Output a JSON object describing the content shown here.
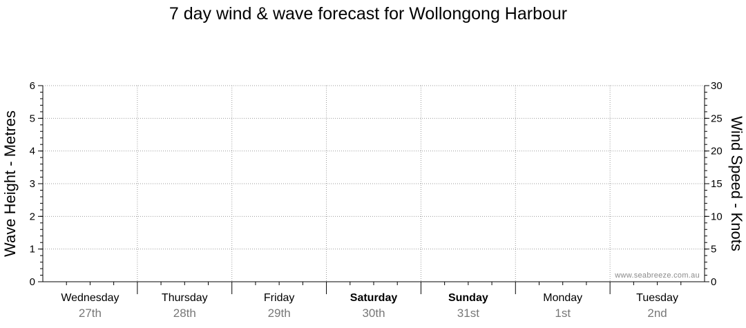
{
  "chart_data": {
    "type": "line",
    "title": "7 day wind & wave forecast for Wollongong Harbour",
    "ylabel_left": "Wave Height - Metres",
    "ylabel_right": "Wind Speed - Knots",
    "ylim_left": [
      0,
      6
    ],
    "ylim_right": [
      0,
      30
    ],
    "yticks_left": [
      "0",
      "1",
      "2",
      "3",
      "4",
      "5",
      "6"
    ],
    "yticks_right": [
      "0",
      "5",
      "10",
      "15",
      "20",
      "25",
      "30"
    ],
    "grid": true,
    "days": [
      {
        "day": "Wednesday",
        "date": "27th",
        "bold": false
      },
      {
        "day": "Thursday",
        "date": "28th",
        "bold": false
      },
      {
        "day": "Friday",
        "date": "29th",
        "bold": false
      },
      {
        "day": "Saturday",
        "date": "30th",
        "bold": true
      },
      {
        "day": "Sunday",
        "date": "31st",
        "bold": true
      },
      {
        "day": "Monday",
        "date": "1st",
        "bold": false
      },
      {
        "day": "Tuesday",
        "date": "2nd",
        "bold": false
      }
    ],
    "series": [],
    "watermark": "www.seabreeze.com.au"
  }
}
